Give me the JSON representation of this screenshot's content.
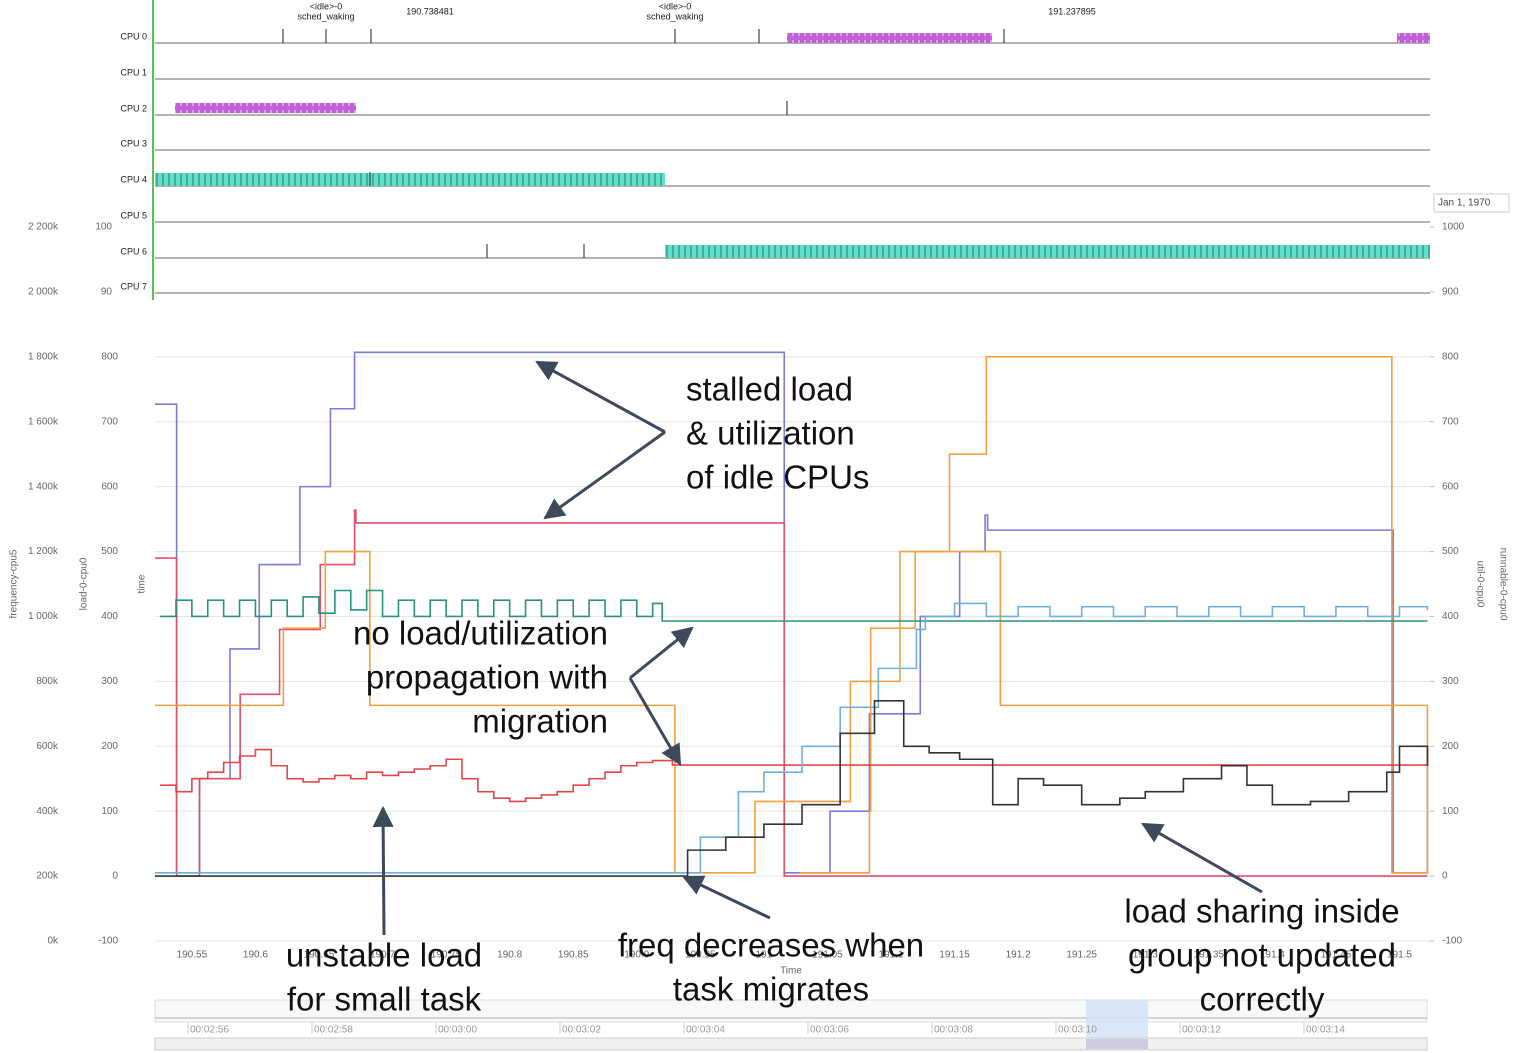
{
  "cpu_tracks": {
    "labels": [
      "CPU 0",
      "CPU 1",
      "CPU 2",
      "CPU 3",
      "CPU 4",
      "CPU 5",
      "CPU 6",
      "CPU 7"
    ],
    "top_labels": [
      {
        "lines": [
          "<idle>-0",
          "sched_waking"
        ]
      },
      {
        "lines": [
          "190.738481"
        ]
      },
      {
        "lines": [
          "<idle>-0",
          "sched_waking"
        ]
      },
      {
        "lines": [
          "191.237895"
        ]
      }
    ]
  },
  "date_label": "Jan 1, 1970",
  "chart_data": {
    "type": "line",
    "xlabel": "Time",
    "axis_titles": [
      "frequency-cpu5",
      "load-0-cpu0",
      "time",
      "runnable-0-cpu0",
      "util-0-cpu0"
    ],
    "xlim": [
      190.521,
      191.524
    ],
    "xticks": [
      190.55,
      190.6,
      190.65,
      190.7,
      190.75,
      190.8,
      190.85,
      190.9,
      190.95,
      191,
      191.05,
      191.1,
      191.15,
      191.2,
      191.25,
      191.3,
      191.35,
      191.4,
      191.45,
      191.5
    ],
    "ylim": [
      -100,
      1000
    ],
    "yticks": [
      -100,
      0,
      100,
      200,
      300,
      400,
      500,
      600,
      700,
      800
    ],
    "y2lim": [
      -100,
      1000
    ],
    "y2ticks": [
      -100,
      0,
      100,
      200,
      300,
      400,
      500,
      600,
      700,
      800,
      900,
      1000
    ],
    "load_top_lim": [
      90,
      100
    ],
    "load_top_ticks": [
      100,
      90
    ],
    "freq_lim": [
      0,
      2200000
    ],
    "freq_ticks": [
      {
        "value": 0,
        "label": "0k"
      },
      {
        "value": 200000,
        "label": "200k"
      },
      {
        "value": 400000,
        "label": "400k"
      },
      {
        "value": 600000,
        "label": "600k"
      },
      {
        "value": 800000,
        "label": "800k"
      },
      {
        "value": 1000000,
        "label": "1 000k"
      },
      {
        "value": 1200000,
        "label": "1 200k"
      },
      {
        "value": 1400000,
        "label": "1 400k"
      },
      {
        "value": 1600000,
        "label": "1 600k"
      },
      {
        "value": 1800000,
        "label": "1 800k"
      },
      {
        "value": 2000000,
        "label": "2 000k"
      },
      {
        "value": 2200000,
        "label": "2 200k"
      }
    ],
    "grid": true,
    "series": [
      {
        "color": "#7b7bd8",
        "x": [
          190.521,
          190.537,
          190.538,
          190.548,
          190.556,
          190.58,
          190.603,
          190.635,
          190.659,
          190.678,
          191.015,
          191.016,
          191.02,
          191.052,
          191.083,
          191.123,
          191.154,
          191.174,
          191.176,
          191.492,
          191.495,
          191.5,
          191.522
        ],
        "values": [
          727,
          727,
          5,
          5,
          150,
          350,
          480,
          600,
          720,
          807,
          807,
          5,
          5,
          100,
          250,
          400,
          500,
          556,
          533,
          533,
          5,
          5,
          200
        ]
      },
      {
        "color": "#e0506a",
        "x": [
          190.521,
          190.537,
          190.538,
          190.545,
          190.556,
          190.588,
          190.619,
          190.651,
          190.678,
          190.679,
          191.015,
          191.016,
          191.522
        ],
        "values": [
          490,
          490,
          0,
          0,
          150,
          280,
          380,
          480,
          564,
          544,
          544,
          0,
          0
        ]
      },
      {
        "color": "#f0a040",
        "x": [
          190.521,
          190.622,
          190.655,
          190.69,
          190.93,
          190.993,
          191.036,
          191.068,
          191.107,
          191.146,
          191.175,
          191.492,
          191.494,
          191.508,
          191.522
        ],
        "values": [
          263,
          382,
          500,
          263,
          5,
          115,
          115,
          300,
          500,
          650,
          800,
          800,
          5,
          5,
          263
        ]
      },
      {
        "color": "#f0a040",
        "x": [
          191.028,
          191.083,
          191.084,
          191.119,
          191.186,
          191.522
        ],
        "values": [
          5,
          100,
          382,
          500,
          263,
          263
        ]
      },
      {
        "color": "#2a9080",
        "x": [
          190.525,
          190.5375,
          190.55,
          190.5625,
          190.575,
          190.5875,
          190.6,
          190.6125,
          190.625,
          190.6375,
          190.65,
          190.6625,
          190.675,
          190.6875,
          190.7,
          190.7125,
          190.725,
          190.7375,
          190.75,
          190.7625,
          190.775,
          190.7875,
          190.8,
          190.8125,
          190.825,
          190.8375,
          190.85,
          190.8625,
          190.875,
          190.8875,
          190.9,
          190.9125,
          190.92,
          191.522
        ],
        "values": [
          400,
          425,
          400,
          425,
          400,
          425,
          400,
          425,
          400,
          430,
          405,
          440,
          410,
          440,
          400,
          425,
          400,
          425,
          400,
          425,
          400,
          425,
          400,
          425,
          400,
          425,
          400,
          425,
          400,
          425,
          400,
          420,
          393,
          393
        ]
      },
      {
        "color": "#e04848",
        "x": [
          190.525,
          190.5375,
          190.55,
          190.5625,
          190.575,
          190.5875,
          190.6,
          190.6125,
          190.625,
          190.6375,
          190.65,
          190.6625,
          190.675,
          190.6875,
          190.7,
          190.7125,
          190.725,
          190.7375,
          190.75,
          190.7625,
          190.775,
          190.7875,
          190.8,
          190.8125,
          190.825,
          190.8375,
          190.85,
          190.8625,
          190.875,
          190.8875,
          190.9,
          190.9125,
          190.928,
          191.522
        ],
        "values": [
          140,
          130,
          150,
          160,
          175,
          185,
          195,
          170,
          150,
          145,
          150,
          155,
          150,
          160,
          155,
          160,
          165,
          170,
          180,
          150,
          130,
          120,
          115,
          120,
          125,
          130,
          140,
          150,
          160,
          170,
          175,
          178,
          171,
          171
        ]
      },
      {
        "color": "#70b0e0",
        "x": [
          190.521,
          190.92,
          190.95,
          190.98,
          191.0,
          191.03,
          191.06,
          191.09,
          191.12,
          191.127,
          191.15,
          191.175,
          191.2,
          191.225,
          191.25,
          191.275,
          191.3,
          191.325,
          191.35,
          191.375,
          191.4,
          191.425,
          191.45,
          191.475,
          191.5,
          191.522
        ],
        "values": [
          5,
          5,
          60,
          130,
          160,
          200,
          260,
          320,
          380,
          400,
          420,
          400,
          415,
          400,
          415,
          400,
          415,
          400,
          415,
          400,
          415,
          400,
          415,
          400,
          415,
          410
        ]
      },
      {
        "color": "#333333",
        "x": [
          190.521,
          190.92,
          190.94,
          190.97,
          191.0,
          191.03,
          191.06,
          191.087,
          191.11,
          191.13,
          191.154,
          191.18,
          191.2,
          191.22,
          191.25,
          191.28,
          191.3,
          191.33,
          191.36,
          191.38,
          191.4,
          191.43,
          191.46,
          191.49,
          191.5,
          191.522
        ],
        "values": [
          0,
          0,
          40,
          60,
          80,
          110,
          220,
          270,
          200,
          190,
          180,
          110,
          150,
          140,
          110,
          120,
          130,
          150,
          170,
          140,
          110,
          115,
          130,
          160,
          200,
          170
        ]
      }
    ]
  },
  "annotations": [
    {
      "lines": [
        "stalled load",
        "& utilization",
        "of idle CPUs"
      ]
    },
    {
      "lines": [
        "no load/utilization",
        "propagation with",
        "migration"
      ]
    },
    {
      "lines": [
        "unstable load",
        "for small task"
      ]
    },
    {
      "lines": [
        "freq decreases when",
        "task migrates"
      ]
    },
    {
      "lines": [
        "load sharing inside",
        "group not updated",
        "correctly"
      ]
    }
  ],
  "timeline_labels": [
    "00:02:56",
    "00:02:58",
    "00:03:00",
    "00:03:02",
    "00:03:04",
    "00:03:06",
    "00:03:08",
    "00:03:10",
    "00:03:12",
    "00:03:14"
  ]
}
